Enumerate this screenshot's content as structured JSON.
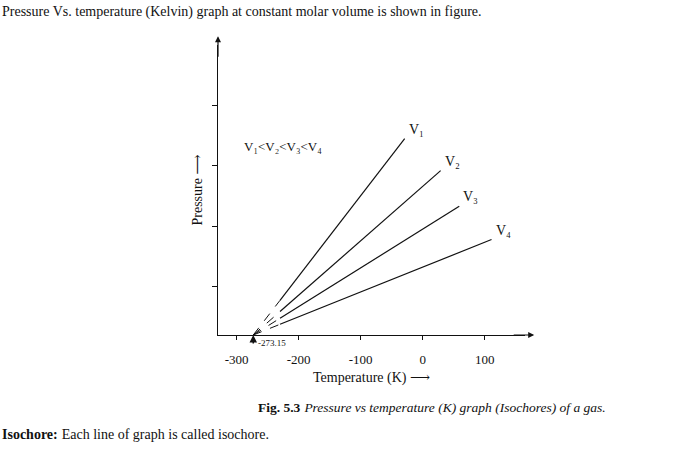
{
  "header": {
    "text": "Pressure Vs. temperature (Kelvin) graph at constant molar volume is shown in figure."
  },
  "chart_data": {
    "type": "line",
    "x_label": "Temperature (K) ⟶",
    "y_label": "Pressure ⟶",
    "xlim": [
      -330,
      165
    ],
    "xticks": [
      -300,
      -200,
      -100,
      0,
      100
    ],
    "ylim": [
      0,
      4.8
    ],
    "yticks": [
      0.8,
      1.8,
      2.8,
      3.8
    ],
    "tick_labels": "x",
    "grid": false,
    "color": "#111111",
    "series": [
      {
        "name": "V₁",
        "line_style": "solid",
        "x": [
          -230,
          -29
        ],
        "values": [
          0.574,
          3.25
        ],
        "extrapolation": {
          "line_style": "dashed",
          "x": [
            -273.15,
            -230
          ],
          "values": [
            0,
            0.574
          ]
        }
      },
      {
        "name": "V₂",
        "line_style": "solid",
        "x": [
          -230,
          29
        ],
        "values": [
          0.388,
          2.72
        ],
        "extrapolation": {
          "line_style": "dashed",
          "x": [
            -273.15,
            -230
          ],
          "values": [
            0,
            0.388
          ]
        }
      },
      {
        "name": "V₃",
        "line_style": "solid",
        "x": [
          -230,
          59
        ],
        "values": [
          0.277,
          2.13
        ],
        "extrapolation": {
          "line_style": "dashed",
          "x": [
            -273.15,
            -230
          ],
          "values": [
            0,
            0.277
          ]
        }
      },
      {
        "name": "V₄",
        "line_style": "solid",
        "x": [
          -230,
          111
        ],
        "values": [
          0.177,
          1.58
        ],
        "extrapolation": {
          "line_style": "dashed",
          "x": [
            -273.15,
            -230
          ],
          "values": [
            0,
            0.177
          ]
        }
      }
    ],
    "annotations": [
      {
        "text": "V₁<V₂<V₃<V₄",
        "x": -225,
        "y": 3.12
      },
      {
        "text": "-273.15",
        "x": -273.15,
        "y": 0
      }
    ]
  },
  "caption": {
    "label": "Fig. 5.3",
    "text": "Pressure vs temperature (K) graph (Isochores) of a gas."
  },
  "note": {
    "term": "Isochore:",
    "text": "Each line of graph is called isochore."
  }
}
